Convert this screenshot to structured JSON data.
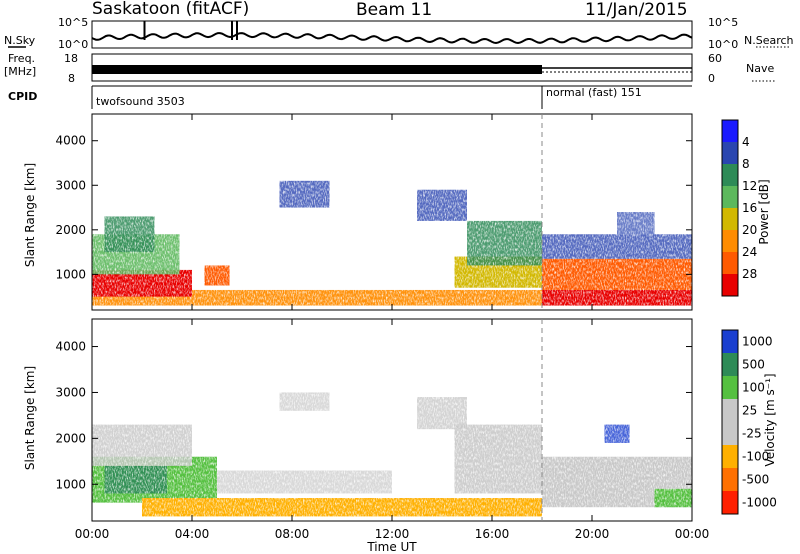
{
  "header": {
    "site": "Saskatoon (fitACF)",
    "beam": "Beam 11",
    "date": "11/Jan/2015"
  },
  "noise_panel": {
    "left_label": "N.Sky",
    "right_label": "N.Search",
    "left_ticks": [
      "10^5",
      "10^0"
    ],
    "right_ticks": [
      "10^5",
      "10^0"
    ]
  },
  "freq_panel": {
    "left_label_1": "Freq.",
    "left_label_2": "[MHz]",
    "right_label": "Nave",
    "left_ticks": [
      "18",
      "8"
    ],
    "right_ticks": [
      "60",
      "0"
    ]
  },
  "cpid_panel": {
    "label": "CPID",
    "modes": [
      {
        "name": "twofsound 3503",
        "start": "00:00"
      },
      {
        "name": "normal (fast) 151",
        "start": "18:00"
      }
    ]
  },
  "x_axis": {
    "label": "Time UT",
    "ticks": [
      "00:00",
      "04:00",
      "08:00",
      "12:00",
      "16:00",
      "20:00",
      "00:00"
    ]
  },
  "power_panel": {
    "ylabel": "Slant Range [km]",
    "yticks": [
      "1000",
      "2000",
      "3000",
      "4000"
    ],
    "colorbar_label": "Power [dB]",
    "colorbar_ticks": [
      "4",
      "8",
      "12",
      "16",
      "20",
      "24",
      "28"
    ],
    "colors": [
      "#1a1aff",
      "#2a46b0",
      "#2e8b57",
      "#5cb85c",
      "#d2b800",
      "#ff8c00",
      "#ff5a00",
      "#e80000"
    ]
  },
  "velocity_panel": {
    "ylabel": "Slant Range [km]",
    "yticks": [
      "1000",
      "2000",
      "3000",
      "4000"
    ],
    "colorbar_label": "Velocity [m s⁻¹]",
    "colorbar_ticks": [
      "1000",
      "500",
      "100",
      "25",
      "-25",
      "-100",
      "-500",
      "-1000"
    ],
    "colors": [
      "#1a3fd0",
      "#2e8b57",
      "#55c040",
      "#c8c8c8",
      "#c8c8c8",
      "#ffb000",
      "#ff7000",
      "#ff2000"
    ]
  },
  "chart_data": {
    "type": "heatmap",
    "x_range_hours": [
      0,
      24
    ],
    "y_range_km": [
      200,
      4600
    ],
    "mode_change_time": "18:00",
    "power_features": [
      {
        "name": "near-range band",
        "t": [
          0,
          24
        ],
        "range": [
          300,
          900
        ],
        "level": "high"
      },
      {
        "name": "early arc",
        "t": [
          0,
          3
        ],
        "range": [
          800,
          2000
        ],
        "level": "high"
      },
      {
        "name": "rising echo",
        "t": [
          14,
          18
        ],
        "range": [
          800,
          2600
        ],
        "level": "medium"
      },
      {
        "name": "late strong echo",
        "t": [
          18,
          24
        ],
        "range": [
          400,
          1300
        ],
        "level": "high"
      }
    ],
    "velocity_features": [
      {
        "name": "near-range band",
        "t": [
          0,
          24
        ],
        "range": [
          300,
          900
        ],
        "sign": "negative"
      },
      {
        "name": "early green patch",
        "t": [
          0,
          5
        ],
        "range": [
          600,
          2000
        ],
        "sign": "positive"
      },
      {
        "name": "late ground scatter",
        "t": [
          15,
          24
        ],
        "range": [
          500,
          2000
        ],
        "sign": "near-zero"
      }
    ]
  }
}
